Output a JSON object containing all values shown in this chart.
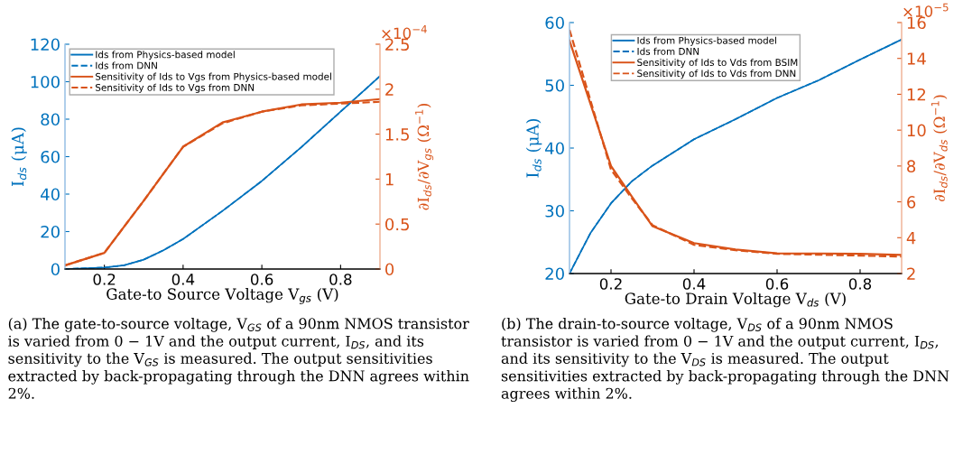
{
  "chart_data": [
    {
      "type": "line",
      "xlabel": "Gate-to Source Voltage V$_{gs}$ (V)",
      "ylabel": "I$_{ds}$ (μA)",
      "y2label": "∂I$_{ds}$/∂V$_{gs}$ (Ω$^{−1}$)",
      "xlim": [
        0.1,
        0.9
      ],
      "xticks": [
        0.2,
        0.4,
        0.6,
        0.8
      ],
      "ylim": [
        0,
        120
      ],
      "yticks": [
        0,
        20,
        40,
        60,
        80,
        100,
        120
      ],
      "y2lim": [
        0,
        2.5
      ],
      "y2ticks": [
        0,
        0.5,
        1,
        1.5,
        2,
        2.5
      ],
      "legend": "top left",
      "x": [
        0.1,
        0.2,
        0.25,
        0.3,
        0.35,
        0.4,
        0.5,
        0.6,
        0.7,
        0.8,
        0.9
      ],
      "series": [
        {
          "name": "Ids from Physics-based model",
          "color": "#0072bd",
          "line_style": "solid",
          "values": [
            0,
            0.8,
            2,
            5,
            10,
            16,
            31,
            47,
            65,
            84,
            103
          ]
        },
        {
          "name": "Ids from DNN",
          "color": "#0072bd",
          "line_style": "dashed",
          "values": [
            0,
            0.8,
            2,
            5,
            10,
            16,
            31,
            47,
            65,
            84,
            103
          ]
        },
        {
          "name": "Sensitivity of Ids to Vgs from Physics-based model",
          "color": "#d95319",
          "line_style": "solid",
          "axis": "y2",
          "values": [
            0.04,
            0.18,
            0.47,
            0.76,
            1.06,
            1.36,
            1.63,
            1.75,
            1.83,
            1.85,
            1.89
          ]
        },
        {
          "name": "Sensitivity of Ids to Vgs from DNN",
          "color": "#d95319",
          "line_style": "dashed",
          "axis": "y2",
          "values": [
            0.04,
            0.18,
            0.47,
            0.76,
            1.06,
            1.36,
            1.62,
            1.75,
            1.82,
            1.84,
            1.86
          ]
        }
      ],
      "annotations": [
        "×10$^{−4}$",
        "(a) The gate-to-source voltage, V$_{GS}$ of a 90nm NMOS transistor is varied from 0 − 1V and the output current, I$_{DS}$, and its sensitivity to the V$_{GS}$ is measured. The output sensitivities extracted by back-propagating through the DNN agrees within 2%."
      ]
    },
    {
      "type": "line",
      "xlabel": "Gate-to Drain Voltage V$_{ds}$ (V)",
      "ylabel": "I$_{ds}$ (μA)",
      "y2label": "∂I$_{ds}$/∂V$_{ds}$ (Ω$^{−1}$)",
      "xlim": [
        0.1,
        0.9
      ],
      "xticks": [
        0.2,
        0.4,
        0.6,
        0.8
      ],
      "ylim": [
        20,
        60
      ],
      "yticks": [
        20,
        30,
        40,
        50,
        60
      ],
      "y2lim": [
        2,
        16
      ],
      "y2ticks": [
        2,
        4,
        6,
        8,
        10,
        12,
        14,
        16
      ],
      "legend": "top",
      "x": [
        0.1,
        0.15,
        0.2,
        0.25,
        0.3,
        0.4,
        0.5,
        0.6,
        0.7,
        0.8,
        0.9
      ],
      "series": [
        {
          "name": "Ids from Physics-based model",
          "color": "#0072bd",
          "line_style": "solid",
          "values": [
            20,
            26.4,
            31.2,
            34.7,
            37.2,
            41.4,
            44.6,
            48,
            50.8,
            54.1,
            57.3
          ]
        },
        {
          "name": "Ids from DNN",
          "color": "#0072bd",
          "line_style": "dashed",
          "values": [
            20,
            26.4,
            31.2,
            34.7,
            37.2,
            41.4,
            44.6,
            48,
            50.8,
            54.1,
            57.3
          ]
        },
        {
          "name": "Sensitivity of Ids to Vds from BSIM",
          "color": "#d95319",
          "line_style": "solid",
          "axis": "y2",
          "values": [
            15.0,
            11.5,
            8.0,
            6.3,
            4.64,
            3.7,
            3.34,
            3.13,
            3.12,
            3.1,
            3.04
          ]
        },
        {
          "name": "Sensitivity of Ids to Vds from DNN",
          "color": "#d95319",
          "line_style": "dashed",
          "axis": "y2",
          "values": [
            15.6,
            11.7,
            7.8,
            6.2,
            4.7,
            3.6,
            3.3,
            3.1,
            3.05,
            3.0,
            2.95
          ]
        }
      ],
      "annotations": [
        "×10$^{−5}$",
        "(b) The drain-to-source voltage, V$_{DS}$ of a 90nm NMOS transistor is varied from 0 − 1V and the output current, I$_{DS}$, and its sensitivity to the V$_{DS}$ is measured. The output sensitivities extracted by back-propagating through the DNN agrees within 2%."
      ]
    }
  ]
}
